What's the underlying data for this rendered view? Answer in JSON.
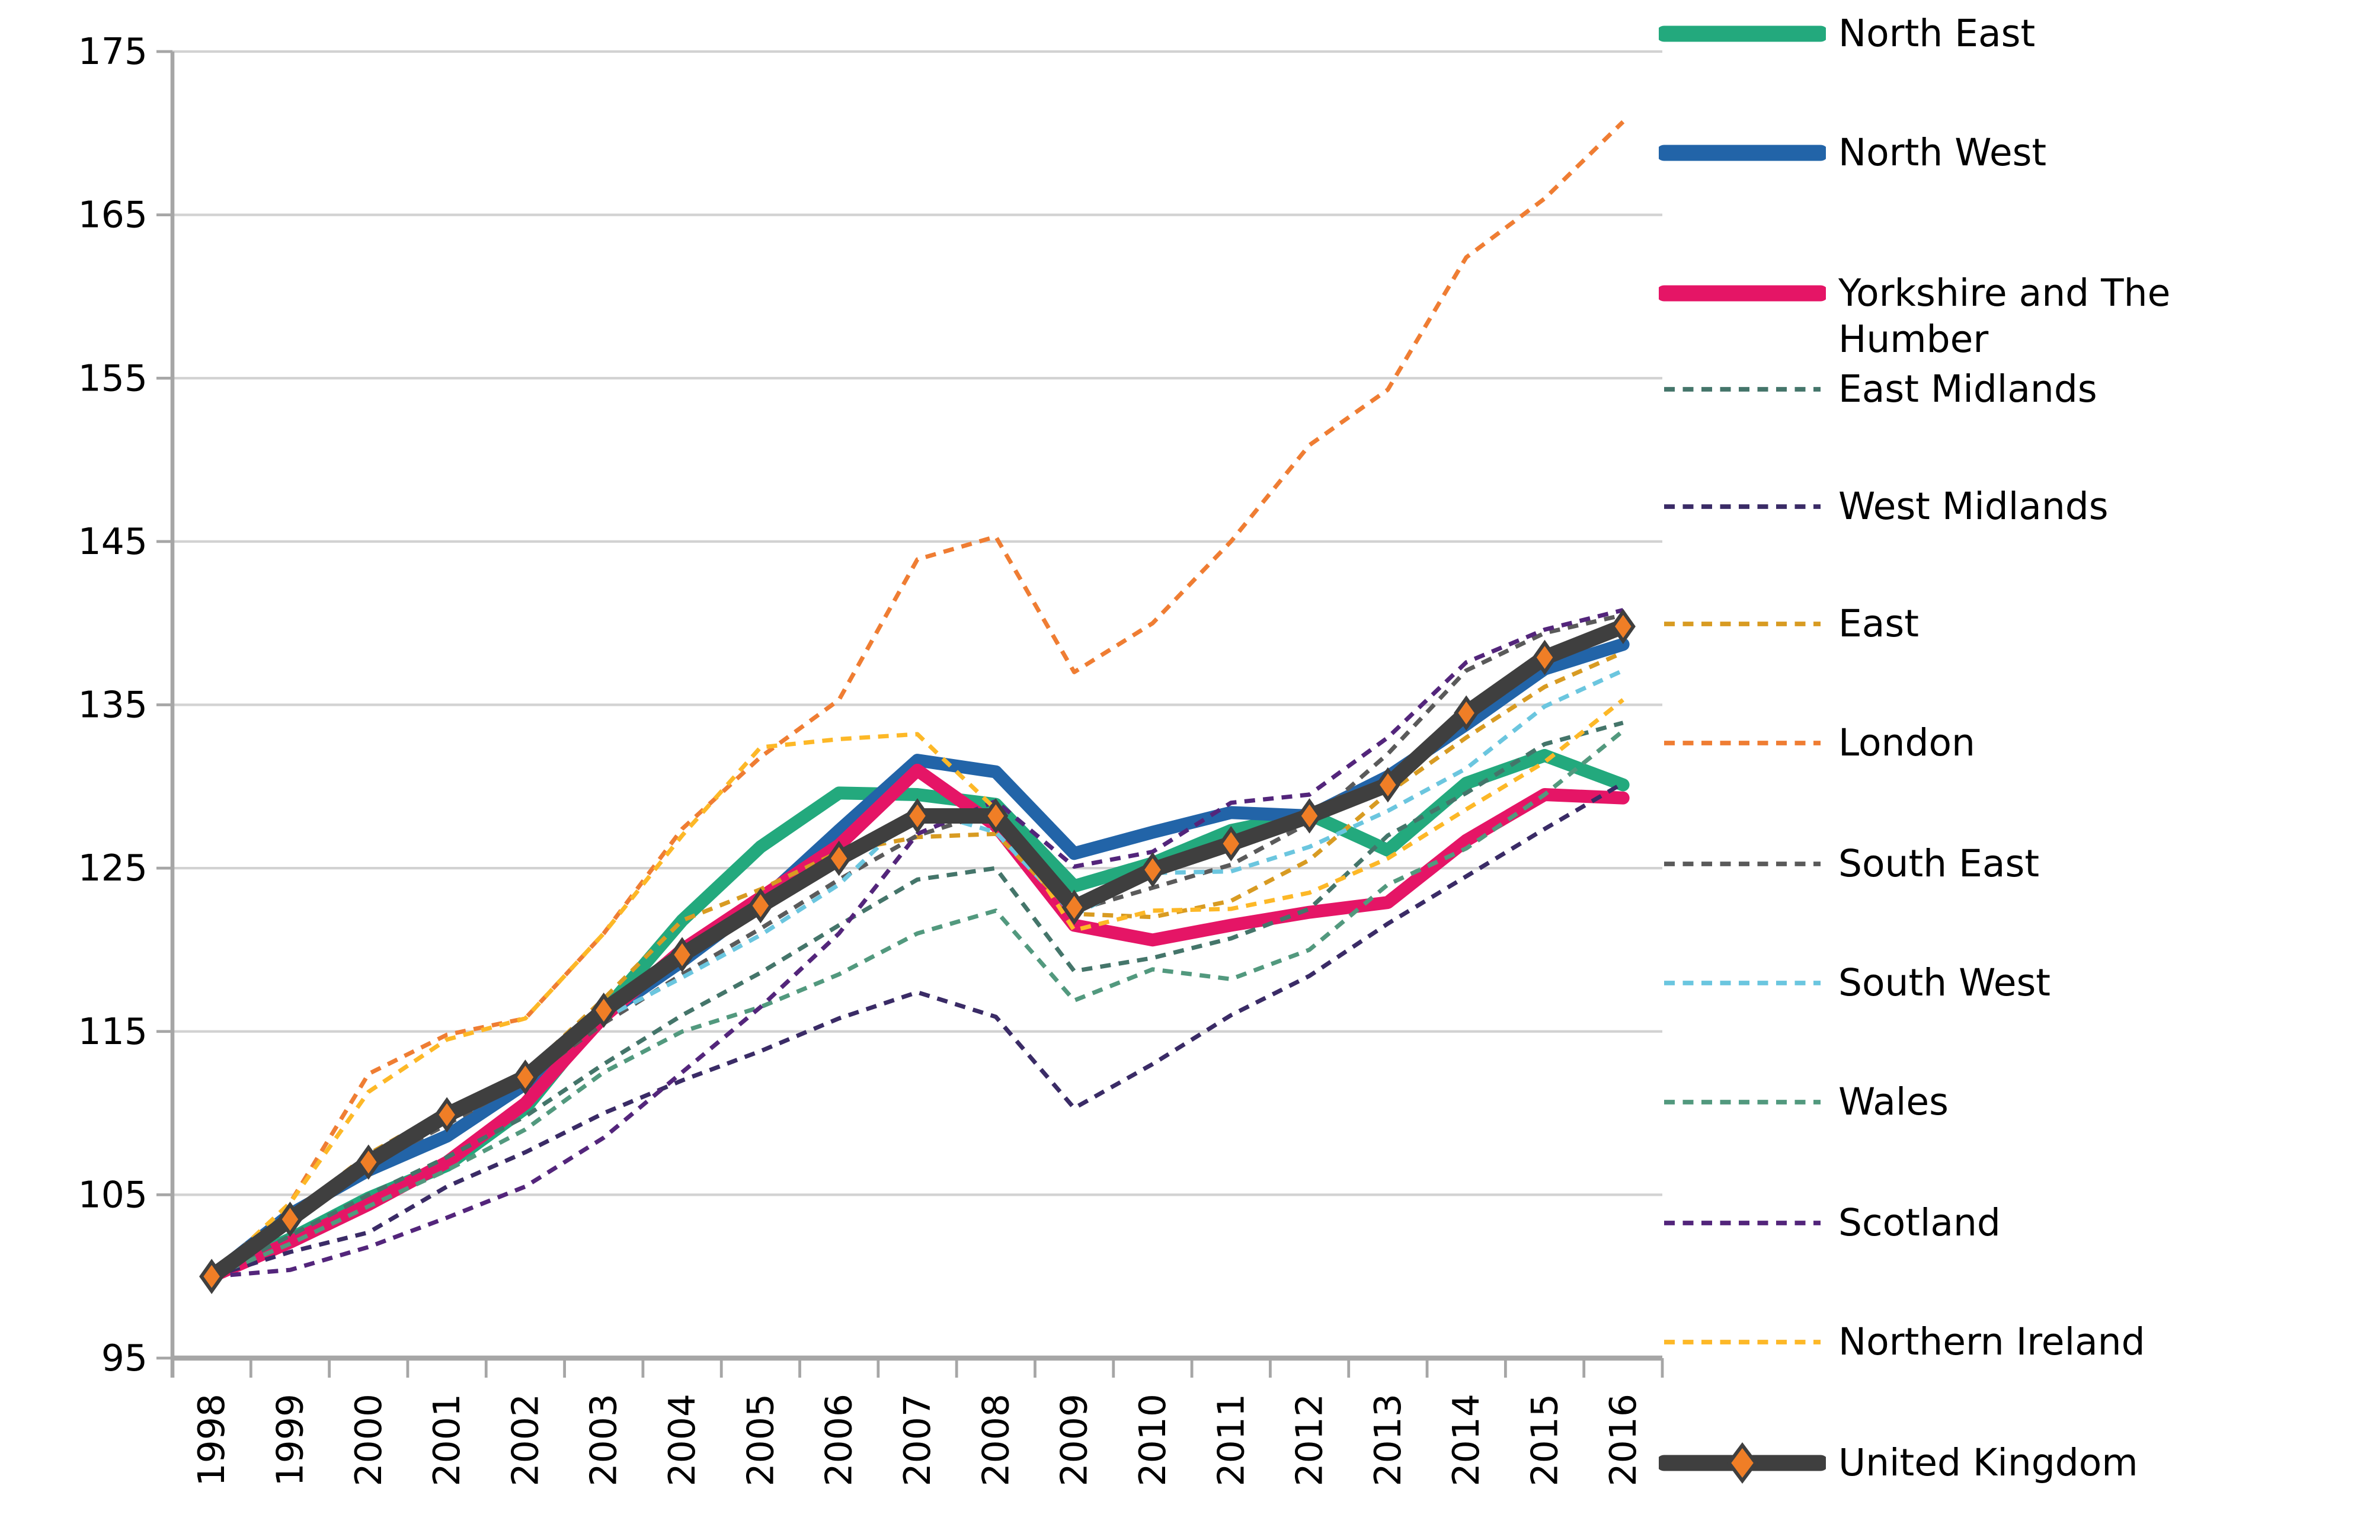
{
  "chart_data": {
    "type": "line",
    "title": "",
    "xlabel": "",
    "ylabel": "",
    "ylim": [
      95,
      175
    ],
    "grid": true,
    "legend_position": "right",
    "axis_color": "#A6A6A6",
    "grid_color": "#D2D2D2",
    "background": "#FFFFFF",
    "x_labels": [
      "1998",
      "1999",
      "2000",
      "2001",
      "2002",
      "2003",
      "2004",
      "2005",
      "2006",
      "2007",
      "2008",
      "2009",
      "2010",
      "2011",
      "2012",
      "2013",
      "2014",
      "2015",
      "2016"
    ],
    "y_tick_labels": [
      "175",
      "165",
      "155",
      "145",
      "135",
      "125",
      "115",
      "105",
      "95"
    ],
    "series": [
      {
        "name": "North East",
        "color": "#23A97D",
        "style": "solid",
        "width": 7.3,
        "values": [
          100,
          102.3,
          104.8,
          106.8,
          110.3,
          116.2,
          121.8,
          126.3,
          129.6,
          129.5,
          128.9,
          123.9,
          125.3,
          127.3,
          128.3,
          126.1,
          130.2,
          131.9,
          130.1
        ]
      },
      {
        "name": "North West",
        "color": "#2264A8",
        "style": "solid",
        "width": 7.3,
        "values": [
          100,
          103.8,
          106.5,
          108.6,
          111.8,
          116.0,
          119.3,
          122.9,
          127.3,
          131.6,
          130.9,
          125.9,
          127.2,
          128.4,
          128.2,
          130.6,
          133.8,
          137.2,
          138.7
        ]
      },
      {
        "name": "Yorkshire and The Humber",
        "color": "#E51566",
        "style": "solid",
        "width": 7.3,
        "values": [
          100,
          102.1,
          104.4,
          107.0,
          110.6,
          115.9,
          120.0,
          123.2,
          126.4,
          131.0,
          127.6,
          121.5,
          120.6,
          121.5,
          122.3,
          122.9,
          126.7,
          129.5,
          129.3
        ]
      },
      {
        "name": "East Midlands",
        "color": "#44756A",
        "style": "dashed",
        "width": 2.4,
        "values": [
          100,
          102.5,
          105.0,
          107.3,
          109.8,
          113.0,
          116.0,
          118.6,
          121.5,
          124.3,
          125.0,
          118.7,
          119.5,
          120.7,
          122.5,
          127.0,
          129.6,
          132.6,
          133.9
        ]
      },
      {
        "name": "West Midlands",
        "color": "#3A2B66",
        "style": "dashed",
        "width": 2.4,
        "values": [
          100,
          101.5,
          102.7,
          105.5,
          107.6,
          110.0,
          112.0,
          113.8,
          115.8,
          117.4,
          115.9,
          110.3,
          113.0,
          116.0,
          118.4,
          121.6,
          124.5,
          127.4,
          130.2
        ]
      },
      {
        "name": "East",
        "color": "#D89B22",
        "style": "dashed",
        "width": 2.4,
        "values": [
          100,
          103.8,
          107.5,
          110.2,
          112.5,
          117.0,
          121.8,
          123.7,
          126.0,
          126.9,
          127.1,
          122.2,
          122.0,
          123.0,
          125.5,
          129.6,
          133.0,
          136.1,
          138.2
        ]
      },
      {
        "name": "London",
        "color": "#EF7D33",
        "style": "dashed",
        "width": 2.4,
        "values": [
          100,
          104.5,
          112.4,
          114.8,
          115.8,
          121.0,
          127.4,
          131.8,
          135.3,
          143.9,
          145.3,
          137.0,
          140.0,
          145.0,
          150.9,
          154.3,
          162.4,
          166.0,
          170.7
        ]
      },
      {
        "name": "South East",
        "color": "#5A5A5A",
        "style": "dashed",
        "width": 2.4,
        "values": [
          100,
          103.6,
          106.8,
          109.3,
          112.0,
          115.5,
          118.5,
          121.3,
          124.3,
          127.0,
          128.5,
          122.4,
          123.8,
          125.2,
          127.8,
          132.0,
          137.1,
          139.4,
          140.5
        ]
      },
      {
        "name": "South West",
        "color": "#6BC6DF",
        "style": "dashed",
        "width": 2.4,
        "values": [
          100,
          103.8,
          106.7,
          109.5,
          112.3,
          115.8,
          118.3,
          120.9,
          124.0,
          128.6,
          127.2,
          122.1,
          124.7,
          124.8,
          126.3,
          128.5,
          131.1,
          134.9,
          137.1
        ]
      },
      {
        "name": "Wales",
        "color": "#52997E",
        "style": "dashed",
        "width": 2.4,
        "values": [
          100,
          102.0,
          104.3,
          106.5,
          109.0,
          112.5,
          115.0,
          116.5,
          118.5,
          121.0,
          122.4,
          116.9,
          118.8,
          118.2,
          120.0,
          124.0,
          126.2,
          129.5,
          133.4
        ]
      },
      {
        "name": "Scotland",
        "color": "#53257B",
        "style": "dashed",
        "width": 2.4,
        "values": [
          100,
          100.4,
          101.8,
          103.6,
          105.5,
          108.5,
          112.5,
          116.5,
          121.0,
          127.1,
          129.1,
          125.1,
          126.0,
          129.0,
          129.5,
          133.0,
          137.6,
          139.6,
          140.8
        ]
      },
      {
        "name": "Northern Ireland",
        "color": "#FDB827",
        "style": "dashed",
        "width": 2.4,
        "values": [
          100,
          104.5,
          111.3,
          114.5,
          115.8,
          121.0,
          127.0,
          132.4,
          132.9,
          133.2,
          128.6,
          121.2,
          122.4,
          122.5,
          123.5,
          125.6,
          128.6,
          131.5,
          135.3
        ]
      },
      {
        "name": "United Kingdom",
        "color": "#3F3F3F",
        "style": "solid",
        "width": 8.7,
        "marker": "diamond",
        "marker_color": "#F07E26",
        "values": [
          100,
          103.5,
          107.0,
          109.9,
          112.2,
          116.3,
          119.7,
          122.7,
          125.6,
          128.2,
          128.2,
          122.6,
          124.9,
          126.5,
          128.2,
          130.1,
          134.5,
          137.9,
          139.8
        ]
      }
    ]
  }
}
